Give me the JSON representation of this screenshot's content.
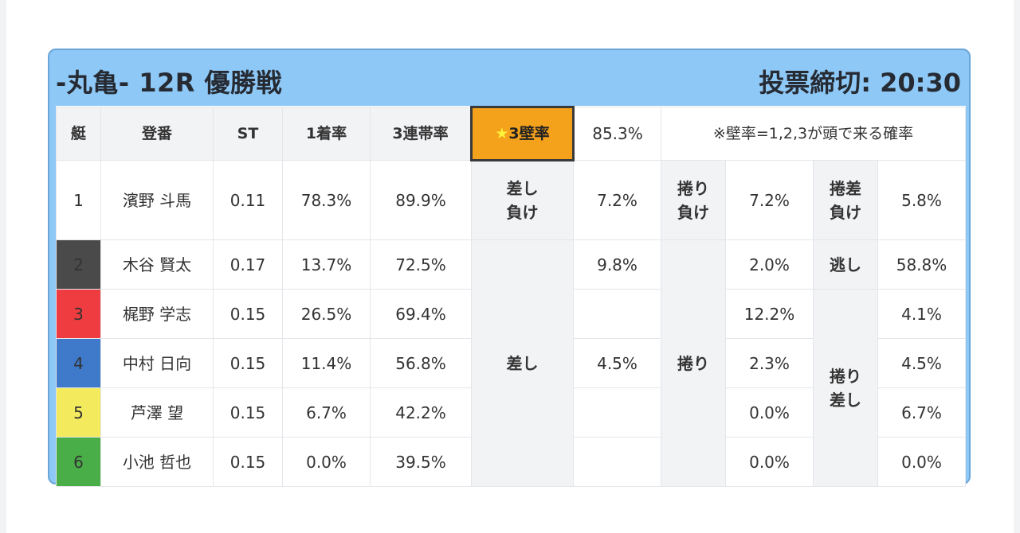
{
  "header": {
    "title": "-丸亀- 12R 優勝戦",
    "deadline": "投票締切: 20:30"
  },
  "columns": {
    "boat": "艇",
    "racer": "登番",
    "st": "ST",
    "win_rate": "1着率",
    "top3_rate": "3連帯率",
    "wall_rate_label": "3壁率",
    "wall_rate_value": "85.3%",
    "wall_note": "※壁率=1,2,3が頭で来る確率"
  },
  "labels": {
    "sashi_make": "差し\n負け",
    "makuri_make": "捲り\n負け",
    "makusashi_make": "捲差\n負け",
    "nige": "逃し",
    "sashi": "差し",
    "makuri": "捲り",
    "makuri_sashi": "捲り\n差し"
  },
  "colors": {
    "boat1": "#ffffff",
    "boat2": "#4a4a4a",
    "boat3": "#ef3c40",
    "boat4": "#3f79c9",
    "boat5": "#f3ea5e",
    "boat6": "#4aae48",
    "frame": "#8ec8f6",
    "highlight": "#f4a11c"
  },
  "rows": [
    {
      "boat": "1",
      "name": "濱野 斗馬",
      "st": "0.11",
      "win": "78.3%",
      "top3": "89.9%",
      "sashi_val": "7.2%",
      "makuri_val": "7.2%",
      "third_val": "5.8%"
    },
    {
      "boat": "2",
      "name": "木谷 賢太",
      "st": "0.17",
      "win": "13.7%",
      "top3": "72.5%",
      "sashi_val": "9.8%",
      "makuri_val": "2.0%",
      "third_val": "58.8%"
    },
    {
      "boat": "3",
      "name": "梶野 学志",
      "st": "0.15",
      "win": "26.5%",
      "top3": "69.4%",
      "sashi_val": "",
      "makuri_val": "12.2%",
      "third_val": "4.1%"
    },
    {
      "boat": "4",
      "name": "中村 日向",
      "st": "0.15",
      "win": "11.4%",
      "top3": "56.8%",
      "sashi_val": "4.5%",
      "makuri_val": "2.3%",
      "third_val": "4.5%"
    },
    {
      "boat": "5",
      "name": "芦澤 望",
      "st": "0.15",
      "win": "6.7%",
      "top3": "42.2%",
      "sashi_val": "",
      "makuri_val": "0.0%",
      "third_val": "6.7%"
    },
    {
      "boat": "6",
      "name": "小池 哲也",
      "st": "0.15",
      "win": "0.0%",
      "top3": "39.5%",
      "sashi_val": "",
      "makuri_val": "0.0%",
      "third_val": "0.0%"
    }
  ]
}
